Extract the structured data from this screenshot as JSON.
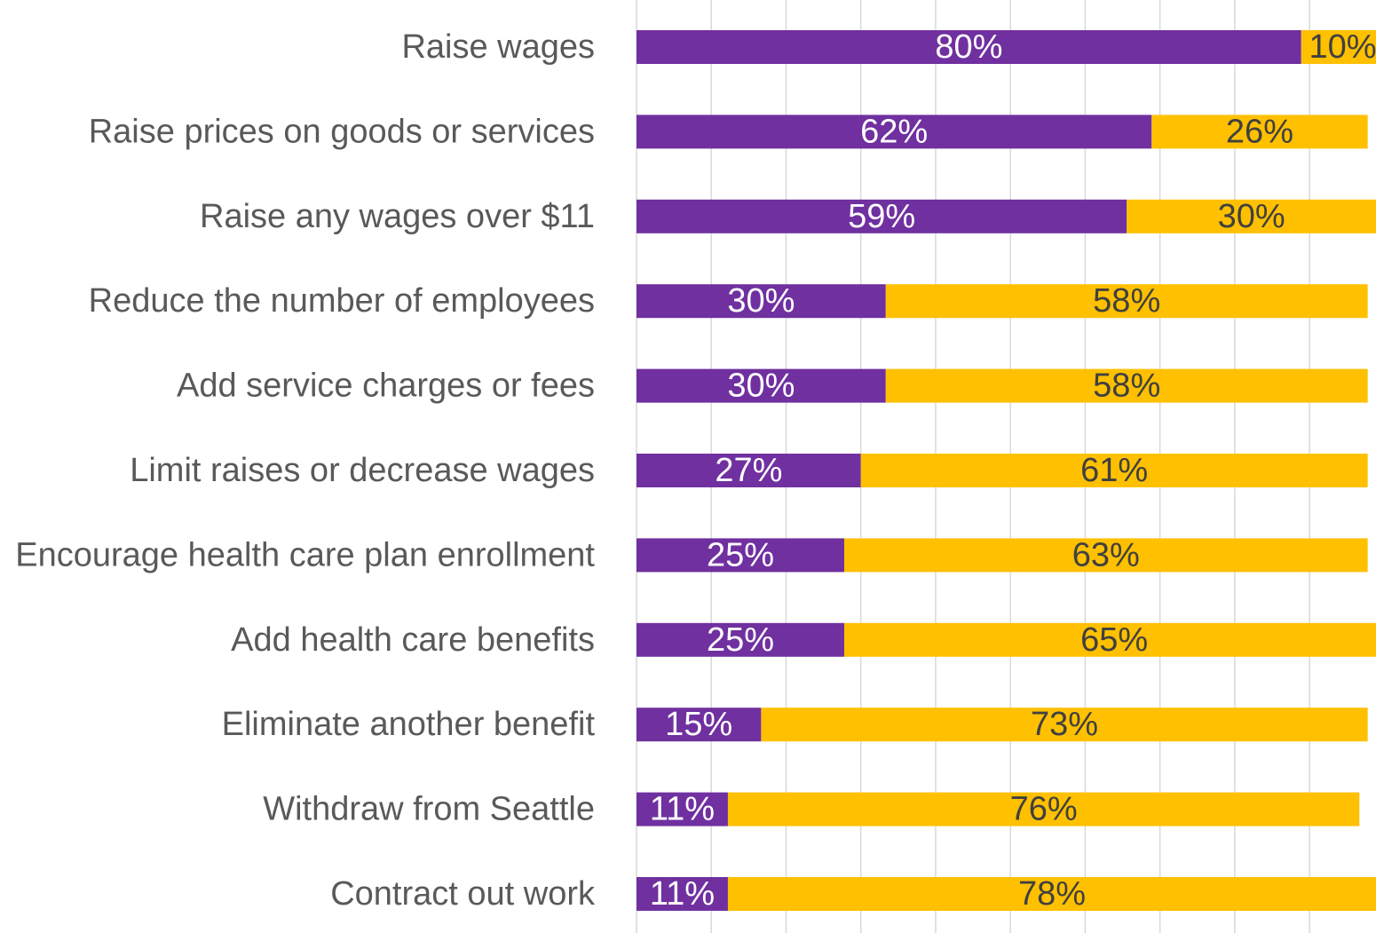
{
  "chart_data": {
    "type": "stacked-bar-horizontal",
    "categories": [
      "Raise wages",
      "Raise prices on goods or services",
      "Raise any wages over $11",
      "Reduce the number of employees",
      "Add service charges or fees",
      "Limit raises or decrease wages",
      "Encourage health care plan enrollment",
      "Add health care benefits",
      "Eliminate another benefit",
      "Withdraw from Seattle",
      "Contract out work"
    ],
    "series": [
      {
        "color": "#7030a0",
        "label_color": "#ffffff",
        "values": [
          80,
          62,
          59,
          30,
          30,
          27,
          25,
          25,
          15,
          11,
          11
        ],
        "value_labels": [
          "80%",
          "62%",
          "59%",
          "30%",
          "30%",
          "27%",
          "25%",
          "25%",
          "15%",
          "11%",
          "11%"
        ]
      },
      {
        "color": "#ffc000",
        "label_color": "#404040",
        "values": [
          10,
          26,
          30,
          58,
          58,
          61,
          63,
          65,
          73,
          76,
          78
        ],
        "value_labels": [
          "10%",
          "26%",
          "30%",
          "58%",
          "58%",
          "61%",
          "63%",
          "65%",
          "73%",
          "76%",
          "78%"
        ]
      }
    ],
    "xlim": [
      0,
      89
    ],
    "xticks": [
      0,
      9,
      18,
      27,
      36,
      45,
      54,
      63,
      72,
      81
    ],
    "grid": true
  }
}
